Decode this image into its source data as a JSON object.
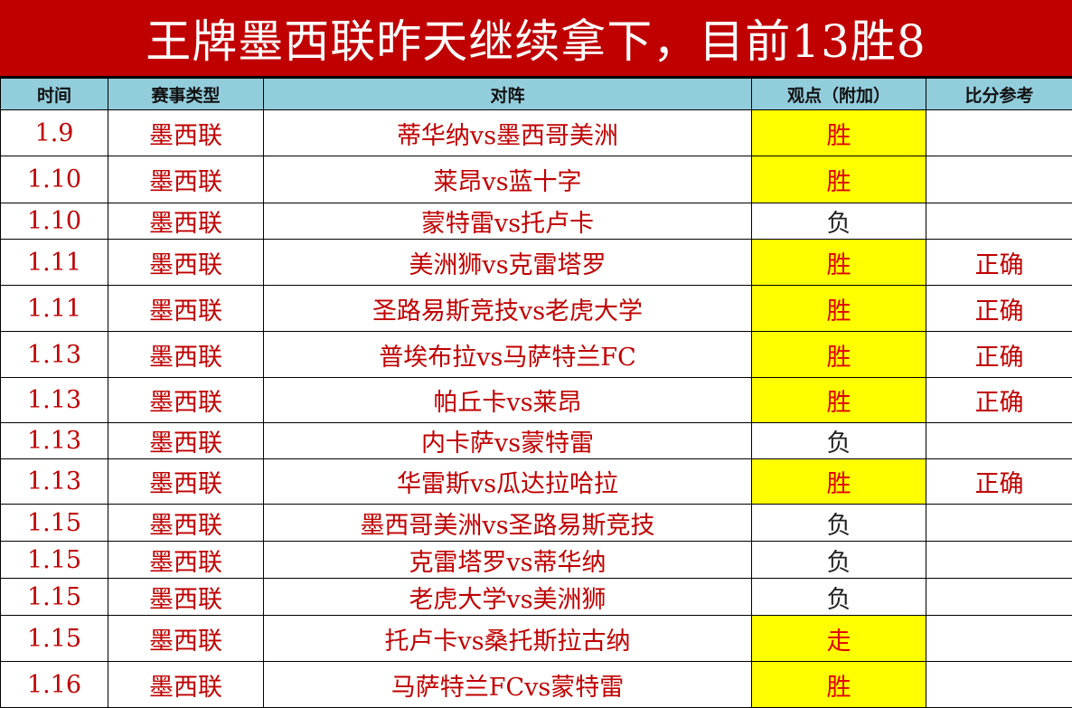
{
  "title": "王牌墨西联昨天继续拿下，目前13胜8",
  "colors": {
    "title_bg": "#c00000",
    "header_bg": "#92cddc",
    "highlight": "#ffff00",
    "text_red": "#c00000"
  },
  "headers": [
    "时间",
    "赛事类型",
    "对阵",
    "观点（附加）",
    "比分参考"
  ],
  "rows": [
    {
      "date": "1.9",
      "league": "墨西联",
      "match": "蒂华纳vs墨西哥美洲",
      "pick": "胜",
      "result": "",
      "highlight": true
    },
    {
      "date": "1.10",
      "league": "墨西联",
      "match": "莱昂vs蓝十字",
      "pick": "胜",
      "result": "",
      "highlight": true
    },
    {
      "date": "1.10",
      "league": "墨西联",
      "match": "蒙特雷vs托卢卡",
      "pick": "负",
      "result": "",
      "highlight": false
    },
    {
      "date": "1.11",
      "league": "墨西联",
      "match": "美洲狮vs克雷塔罗",
      "pick": "胜",
      "result": "正确",
      "highlight": true
    },
    {
      "date": "1.11",
      "league": "墨西联",
      "match": "圣路易斯竞技vs老虎大学",
      "pick": "胜",
      "result": "正确",
      "highlight": true
    },
    {
      "date": "1.13",
      "league": "墨西联",
      "match": "普埃布拉vs马萨特兰FC",
      "pick": "胜",
      "result": "正确",
      "highlight": true
    },
    {
      "date": "1.13",
      "league": "墨西联",
      "match": "帕丘卡vs莱昂",
      "pick": "胜",
      "result": "正确",
      "highlight": true
    },
    {
      "date": "1.13",
      "league": "墨西联",
      "match": "内卡萨vs蒙特雷",
      "pick": "负",
      "result": "",
      "highlight": false
    },
    {
      "date": "1.13",
      "league": "墨西联",
      "match": "华雷斯vs瓜达拉哈拉",
      "pick": "胜",
      "result": "正确",
      "highlight": true
    },
    {
      "date": "1.15",
      "league": "墨西联",
      "match": "墨西哥美洲vs圣路易斯竞技",
      "pick": "负",
      "result": "",
      "highlight": false
    },
    {
      "date": "1.15",
      "league": "墨西联",
      "match": "克雷塔罗vs蒂华纳",
      "pick": "负",
      "result": "",
      "highlight": false
    },
    {
      "date": "1.15",
      "league": "墨西联",
      "match": "老虎大学vs美洲狮",
      "pick": "负",
      "result": "",
      "highlight": false
    },
    {
      "date": "1.15",
      "league": "墨西联",
      "match": "托卢卡vs桑托斯拉古纳",
      "pick": "走",
      "result": "",
      "highlight": true
    },
    {
      "date": "1.16",
      "league": "墨西联",
      "match": "马萨特兰FCvs蒙特雷",
      "pick": "胜",
      "result": "",
      "highlight": true
    }
  ]
}
